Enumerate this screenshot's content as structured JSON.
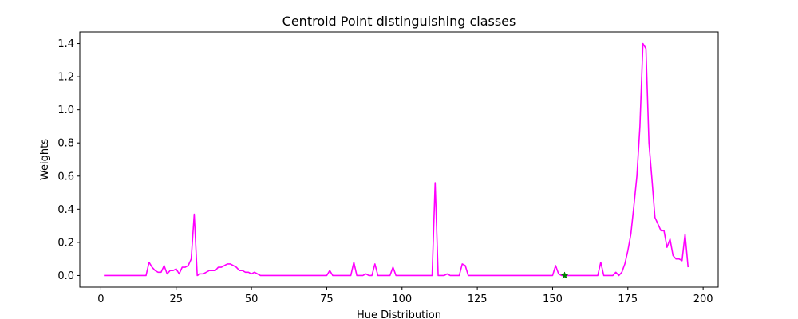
{
  "chart_data": {
    "type": "line",
    "title": "Centroid Point distinguishing classes",
    "xlabel": "Hue Distribution",
    "ylabel": "Weights",
    "xlim": [
      -7,
      205
    ],
    "ylim": [
      -0.07,
      1.47
    ],
    "xticks": [
      0,
      25,
      50,
      75,
      100,
      125,
      150,
      175,
      200
    ],
    "yticks": [
      0.0,
      0.2,
      0.4,
      0.6,
      0.8,
      1.0,
      1.2,
      1.4
    ],
    "ytick_labels": [
      "0.0",
      "0.2",
      "0.4",
      "0.6",
      "0.8",
      "1.0",
      "1.2",
      "1.4"
    ],
    "grid": false,
    "series": [
      {
        "color": "#ff00ff",
        "x": [
          1,
          5,
          10,
          15,
          16,
          17,
          18,
          19,
          20,
          21,
          22,
          23,
          24,
          25,
          26,
          27,
          28,
          29,
          30,
          31,
          32,
          33,
          34,
          35,
          36,
          37,
          38,
          39,
          40,
          41,
          42,
          43,
          44,
          45,
          46,
          47,
          48,
          49,
          50,
          51,
          52,
          53,
          55,
          60,
          65,
          70,
          75,
          76,
          77,
          80,
          83,
          84,
          85,
          86,
          87,
          88,
          89,
          90,
          91,
          92,
          93,
          94,
          95,
          96,
          97,
          98,
          100,
          105,
          110,
          111,
          112,
          113,
          114,
          115,
          116,
          117,
          118,
          119,
          120,
          121,
          122,
          123,
          125,
          130,
          135,
          140,
          145,
          150,
          151,
          152,
          153,
          155,
          160,
          165,
          166,
          167,
          168,
          169,
          170,
          171,
          172,
          173,
          174,
          175,
          176,
          177,
          178,
          179,
          180,
          181,
          182,
          183,
          184,
          185,
          186,
          187,
          188,
          189,
          190,
          191,
          192,
          193,
          194,
          195
        ],
        "y": [
          0.0,
          0.0,
          0.0,
          0.0,
          0.08,
          0.05,
          0.03,
          0.02,
          0.02,
          0.06,
          0.01,
          0.03,
          0.03,
          0.04,
          0.01,
          0.05,
          0.05,
          0.06,
          0.1,
          0.37,
          0.0,
          0.01,
          0.01,
          0.02,
          0.03,
          0.03,
          0.03,
          0.05,
          0.05,
          0.06,
          0.07,
          0.07,
          0.06,
          0.05,
          0.03,
          0.03,
          0.02,
          0.02,
          0.01,
          0.02,
          0.01,
          0.0,
          0.0,
          0.0,
          0.0,
          0.0,
          0.0,
          0.03,
          0.0,
          0.0,
          0.0,
          0.08,
          0.0,
          0.0,
          0.0,
          0.01,
          0.0,
          0.0,
          0.07,
          0.0,
          0.0,
          0.0,
          0.0,
          0.0,
          0.05,
          0.0,
          0.0,
          0.0,
          0.0,
          0.56,
          0.0,
          0.0,
          0.0,
          0.01,
          0.0,
          0.0,
          0.0,
          0.0,
          0.07,
          0.06,
          0.0,
          0.0,
          0.0,
          0.0,
          0.0,
          0.0,
          0.0,
          0.0,
          0.06,
          0.01,
          0.0,
          0.0,
          0.0,
          0.0,
          0.08,
          0.0,
          0.0,
          0.0,
          0.0,
          0.02,
          0.0,
          0.02,
          0.07,
          0.15,
          0.25,
          0.42,
          0.6,
          0.9,
          1.4,
          1.37,
          0.8,
          0.58,
          0.35,
          0.31,
          0.27,
          0.27,
          0.17,
          0.22,
          0.12,
          0.1,
          0.1,
          0.09,
          0.25,
          0.05
        ]
      }
    ],
    "markers": [
      {
        "x": 154,
        "y": 0.0,
        "color": "#008000",
        "shape": "star"
      }
    ]
  }
}
